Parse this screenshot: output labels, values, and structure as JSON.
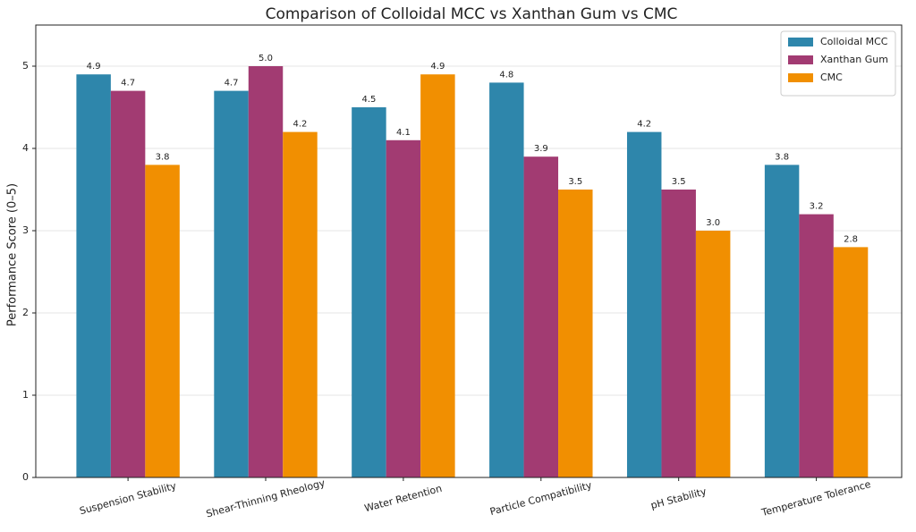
{
  "chart_data": {
    "type": "bar",
    "title": "Comparison of Colloidal MCC vs Xanthan Gum vs CMC",
    "y_label": "Performance Score (0–5)",
    "categories": [
      "Suspension Stability",
      "Shear-Thinning Rheology",
      "Water Retention",
      "Particle Compatibility",
      "pH Stability",
      "Temperature Tolerance"
    ],
    "series": [
      {
        "name": "Colloidal MCC",
        "color": "#2e86ab",
        "values": [
          4.9,
          4.7,
          4.5,
          4.8,
          4.2,
          3.8
        ],
        "value_labels": [
          "4.9",
          "4.7",
          "4.5",
          "4.8",
          "4.2",
          "3.8"
        ]
      },
      {
        "name": "Xanthan Gum",
        "color": "#a23b72",
        "values": [
          4.7,
          5,
          4.1,
          3.9,
          3.5,
          3.2
        ],
        "value_labels": [
          "4.7",
          "5.0",
          "4.1",
          "3.9",
          "3.5",
          "3.2"
        ]
      },
      {
        "name": "CMC",
        "color": "#f18f01",
        "values": [
          3.8,
          4.2,
          4.9,
          3.5,
          3,
          2.8
        ],
        "value_labels": [
          "3.8",
          "4.2",
          "4.9",
          "3.5",
          "3.0",
          "2.8"
        ]
      }
    ],
    "ylim": [
      0,
      5.5
    ],
    "yticks": [
      0,
      1,
      2,
      3,
      4,
      5
    ],
    "grid": true,
    "legend": "upper-right"
  }
}
